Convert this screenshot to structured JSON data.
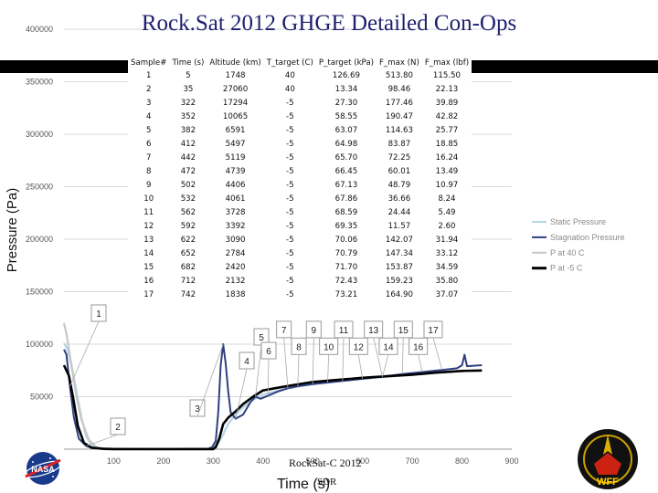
{
  "slide": {
    "title": "Rock.Sat 2012 GHGE Detailed Con-Ops",
    "footer": "RockSat-C 2012",
    "footer_sub": "SDR",
    "logos": [
      "nasa-logo",
      "wff-logo"
    ]
  },
  "table": {
    "headers": [
      "Sample#",
      "Time (s)",
      "Altitude (km)",
      "T_target (C)",
      "P_target (kPa)",
      "F_max (N)",
      "F_max (lbf)"
    ],
    "rows": [
      [
        "1",
        "5",
        "1748",
        "40",
        "126.69",
        "513.80",
        "115.50"
      ],
      [
        "2",
        "35",
        "27060",
        "40",
        "13.34",
        "98.46",
        "22.13"
      ],
      [
        "3",
        "322",
        "17294",
        "-5",
        "27.30",
        "177.46",
        "39.89"
      ],
      [
        "4",
        "352",
        "10065",
        "-5",
        "58.55",
        "190.47",
        "42.82"
      ],
      [
        "5",
        "382",
        "6591",
        "-5",
        "63.07",
        "114.63",
        "25.77"
      ],
      [
        "6",
        "412",
        "5497",
        "-5",
        "64.98",
        "83.87",
        "18.85"
      ],
      [
        "7",
        "442",
        "5119",
        "-5",
        "65.70",
        "72.25",
        "16.24"
      ],
      [
        "8",
        "472",
        "4739",
        "-5",
        "66.45",
        "60.01",
        "13.49"
      ],
      [
        "9",
        "502",
        "4406",
        "-5",
        "67.13",
        "48.79",
        "10.97"
      ],
      [
        "10",
        "532",
        "4061",
        "-5",
        "67.86",
        "36.66",
        "8.24"
      ],
      [
        "11",
        "562",
        "3728",
        "-5",
        "68.59",
        "24.44",
        "5.49"
      ],
      [
        "12",
        "592",
        "3392",
        "-5",
        "69.35",
        "11.57",
        "2.60"
      ],
      [
        "13",
        "622",
        "3090",
        "-5",
        "70.06",
        "142.07",
        "31.94"
      ],
      [
        "14",
        "652",
        "2784",
        "-5",
        "70.79",
        "147.34",
        "33.12"
      ],
      [
        "15",
        "682",
        "2420",
        "-5",
        "71.70",
        "153.87",
        "34.59"
      ],
      [
        "16",
        "712",
        "2132",
        "-5",
        "72.43",
        "159.23",
        "35.80"
      ],
      [
        "17",
        "742",
        "1838",
        "-5",
        "73.21",
        "164.90",
        "37.07"
      ]
    ]
  },
  "chart_data": {
    "type": "line",
    "xlabel": "Time (s)",
    "ylabel": "Pressure (Pa)",
    "xlim": [
      0,
      900
    ],
    "ylim": [
      0,
      400000
    ],
    "x_ticks": [
      "100",
      "200",
      "300",
      "400",
      "500",
      "600",
      "700",
      "800",
      "900"
    ],
    "x_tick_values": [
      100,
      200,
      300,
      400,
      500,
      600,
      700,
      800,
      900
    ],
    "y_ticks": [
      "50000",
      "100000",
      "150000",
      "200000",
      "250000",
      "300000",
      "350000",
      "400000"
    ],
    "y_tick_values": [
      50000,
      100000,
      150000,
      200000,
      250000,
      300000,
      350000,
      400000
    ],
    "grid": "horizontal",
    "legend_position": "right",
    "series": [
      {
        "name": "Static Pressure",
        "color": "#b7d7e8",
        "points": [
          [
            0,
            101000
          ],
          [
            5,
            97000
          ],
          [
            15,
            80000
          ],
          [
            25,
            55000
          ],
          [
            35,
            30000
          ],
          [
            45,
            12000
          ],
          [
            55,
            4000
          ],
          [
            70,
            1000
          ],
          [
            100,
            300
          ],
          [
            200,
            200
          ],
          [
            290,
            500
          ],
          [
            300,
            2000
          ],
          [
            310,
            6000
          ],
          [
            320,
            14000
          ],
          [
            330,
            24000
          ],
          [
            345,
            33000
          ],
          [
            360,
            40000
          ],
          [
            380,
            47000
          ],
          [
            400,
            52000
          ],
          [
            450,
            58000
          ],
          [
            500,
            62000
          ],
          [
            550,
            65000
          ],
          [
            600,
            67000
          ],
          [
            650,
            69000
          ],
          [
            700,
            71000
          ],
          [
            750,
            73000
          ],
          [
            800,
            74500
          ],
          [
            840,
            75000
          ]
        ]
      },
      {
        "name": "Stagnation Pressure",
        "color": "#2f3f7f",
        "points": [
          [
            0,
            95000
          ],
          [
            5,
            90000
          ],
          [
            12,
            60000
          ],
          [
            20,
            30000
          ],
          [
            30,
            10000
          ],
          [
            45,
            3000
          ],
          [
            60,
            1000
          ],
          [
            100,
            400
          ],
          [
            200,
            300
          ],
          [
            290,
            400
          ],
          [
            298,
            2000
          ],
          [
            305,
            8000
          ],
          [
            310,
            35000
          ],
          [
            315,
            80000
          ],
          [
            320,
            100000
          ],
          [
            325,
            82000
          ],
          [
            330,
            55000
          ],
          [
            335,
            35000
          ],
          [
            345,
            29000
          ],
          [
            360,
            33000
          ],
          [
            375,
            45000
          ],
          [
            385,
            50000
          ],
          [
            395,
            48000
          ],
          [
            410,
            51000
          ],
          [
            430,
            55000
          ],
          [
            450,
            58000
          ],
          [
            470,
            60000
          ],
          [
            500,
            62000
          ],
          [
            530,
            63500
          ],
          [
            560,
            65000
          ],
          [
            600,
            67000
          ],
          [
            640,
            69000
          ],
          [
            680,
            71500
          ],
          [
            700,
            72500
          ],
          [
            720,
            73500
          ],
          [
            760,
            75500
          ],
          [
            790,
            77000
          ],
          [
            800,
            80000
          ],
          [
            805,
            90000
          ],
          [
            810,
            79000
          ],
          [
            840,
            80000
          ]
        ]
      },
      {
        "name": "P at 40 C",
        "color": "#c8c8c8",
        "points": [
          [
            0,
            120000
          ],
          [
            5,
            110000
          ],
          [
            15,
            80000
          ],
          [
            25,
            50000
          ],
          [
            35,
            28000
          ],
          [
            50,
            9000
          ],
          [
            65,
            2000
          ],
          [
            80,
            500
          ],
          [
            100,
            100
          ],
          [
            300,
            50
          ]
        ]
      },
      {
        "name": "P at -5 C",
        "color": "#000000",
        "points": [
          [
            0,
            80000
          ],
          [
            5,
            75000
          ],
          [
            10,
            70000
          ],
          [
            18,
            50000
          ],
          [
            28,
            22000
          ],
          [
            40,
            6000
          ],
          [
            55,
            1500
          ],
          [
            80,
            300
          ],
          [
            100,
            100
          ],
          [
            300,
            100
          ],
          [
            305,
            2000
          ],
          [
            312,
            10000
          ],
          [
            320,
            24000
          ],
          [
            330,
            30000
          ],
          [
            345,
            36000
          ],
          [
            360,
            43000
          ],
          [
            380,
            50000
          ],
          [
            400,
            56000
          ],
          [
            430,
            58500
          ],
          [
            460,
            61000
          ],
          [
            500,
            64000
          ],
          [
            550,
            66000
          ],
          [
            600,
            68000
          ],
          [
            650,
            69500
          ],
          [
            700,
            71000
          ],
          [
            750,
            73000
          ],
          [
            800,
            74500
          ],
          [
            840,
            75000
          ]
        ]
      }
    ],
    "callouts": [
      {
        "label": "1",
        "x": 10,
        "y": 110000
      },
      {
        "label": "2",
        "x": 38,
        "y": 20000
      },
      {
        "label": "3",
        "x": 322,
        "y": 38000
      },
      {
        "label": "4",
        "x": 352,
        "y": 88000
      },
      {
        "label": "5",
        "x": 382,
        "y": 106000
      },
      {
        "label": "6",
        "x": 412,
        "y": 98000
      },
      {
        "label": "7",
        "x": 442,
        "y": 114000
      },
      {
        "label": "8",
        "x": 472,
        "y": 98000
      },
      {
        "label": "9",
        "x": 502,
        "y": 114000
      },
      {
        "label": "10",
        "x": 532,
        "y": 98000
      },
      {
        "label": "11",
        "x": 562,
        "y": 114000
      },
      {
        "label": "12",
        "x": 592,
        "y": 98000
      },
      {
        "label": "13",
        "x": 622,
        "y": 114000
      },
      {
        "label": "14",
        "x": 652,
        "y": 98000
      },
      {
        "label": "15",
        "x": 682,
        "y": 114000
      },
      {
        "label": "16",
        "x": 712,
        "y": 98000
      },
      {
        "label": "17",
        "x": 742,
        "y": 114000
      }
    ]
  }
}
